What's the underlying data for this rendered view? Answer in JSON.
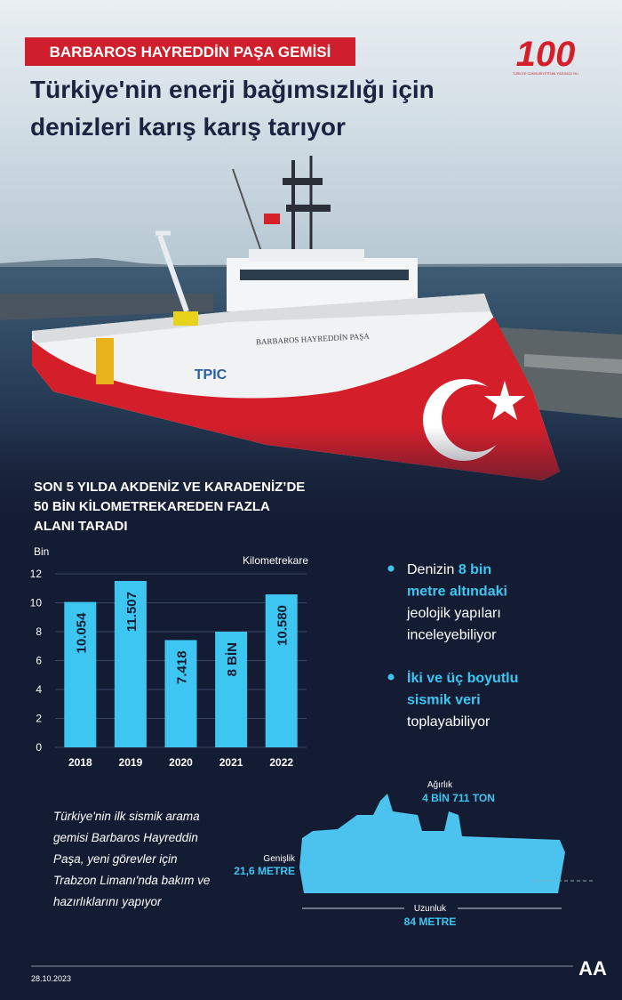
{
  "header": {
    "label": "BARBAROS HAYREDDİN PAŞA GEMİSİ",
    "title_lines": [
      "Türkiye'nin enerji bağımsızlığı için",
      "denizleri karış karış tarıyor"
    ],
    "logo": "100",
    "logo_caption": "TÜRKİYE CUMHURİYETİ'NİN YÜZÜNCÜ YILI"
  },
  "photo": {
    "ship_name": "BARBAROS HAYREDDİN PAŞA",
    "hull_logo": "TPIC"
  },
  "chart_data": {
    "type": "bar",
    "title_lines": [
      "SON 5 YILDA AKDENİZ VE KARADENİZ’DE",
      "50 BİN KİLOMETREKAREDEN FAZLA",
      "ALANI TARADI"
    ],
    "y_label": "Bin",
    "unit_label": "Kilometrekare",
    "categories": [
      "2018",
      "2019",
      "2020",
      "2021",
      "2022"
    ],
    "values": [
      10.054,
      11.507,
      7.418,
      8,
      10.58
    ],
    "value_labels": [
      "10.054",
      "11.507",
      "7.418",
      "8 BİN",
      "10.580"
    ],
    "ylim": [
      0,
      12
    ],
    "yticks": [
      0,
      2,
      4,
      6,
      8,
      10,
      12
    ],
    "color": "#3ec6f2",
    "grid": true
  },
  "bullets": [
    [
      [
        {
          "t": "Denizin "
        },
        {
          "t": "8 bin",
          "bold": true
        }
      ],
      [
        {
          "t": "metre altındaki",
          "bold": true
        }
      ],
      [
        {
          "t": "jeolojik yapıları"
        }
      ],
      [
        {
          "t": "inceleyebiliyor"
        }
      ]
    ],
    [
      [
        {
          "t": "İki ve üç boyutlu",
          "bold": true
        }
      ],
      [
        {
          "t": "sismik veri",
          "bold": true
        }
      ],
      [
        {
          "t": "toplayabiliyor"
        }
      ]
    ]
  ],
  "note_lines": [
    "Türkiye'nin ilk sismik arama",
    "gemisi Barbaros Hayreddin",
    "Paşa, yeni görevler için",
    "Trabzon Limanı'nda bakım ve",
    "hazırlıklarını yapıyor"
  ],
  "ship": {
    "weight_label": "Ağırlık",
    "weight": "4 BİN 711 TON",
    "width_label": "Genişlik",
    "width": "21,6 METRE",
    "length_label": "Uzunluk",
    "length": "84 METRE"
  },
  "footer": {
    "date": "28.10.2023",
    "agency": "AA"
  }
}
